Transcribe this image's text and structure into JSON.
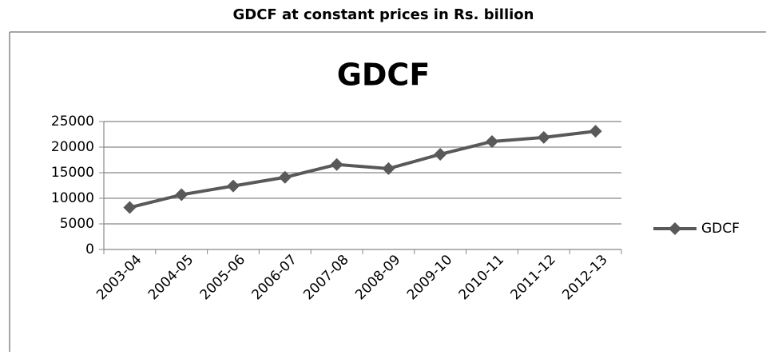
{
  "page_title": "GDCF at constant prices in Rs. billion",
  "chart_data": {
    "type": "line",
    "title": "GDCF",
    "categories": [
      "2003-04",
      "2004-05",
      "2005-06",
      "2006-07",
      "2007-08",
      "2008-09",
      "2009-10",
      "2010-11",
      "2011-12",
      "2012-13"
    ],
    "series": [
      {
        "name": "GDCF",
        "color": "#595959",
        "values": [
          8200,
          10700,
          12400,
          14100,
          16600,
          15800,
          18600,
          21100,
          21900,
          23100
        ]
      }
    ],
    "ylim": [
      0,
      25000
    ],
    "yticks": [
      0,
      5000,
      10000,
      15000,
      20000,
      25000
    ],
    "grid": true,
    "legend": "right"
  }
}
